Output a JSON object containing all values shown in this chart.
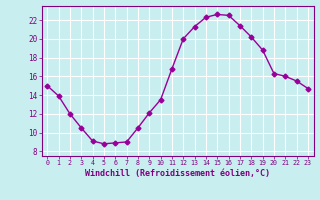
{
  "x": [
    0,
    1,
    2,
    3,
    4,
    5,
    6,
    7,
    8,
    9,
    10,
    11,
    12,
    13,
    14,
    15,
    16,
    17,
    18,
    19,
    20,
    21,
    22,
    23
  ],
  "y": [
    15.0,
    13.9,
    12.0,
    10.5,
    9.1,
    8.8,
    8.9,
    9.0,
    10.5,
    12.1,
    13.5,
    16.8,
    20.0,
    21.3,
    22.3,
    22.6,
    22.5,
    21.4,
    20.2,
    18.8,
    16.3,
    16.0,
    15.5,
    14.7
  ],
  "line_color": "#990099",
  "marker": "D",
  "marker_size": 2.5,
  "bg_color": "#c8eef0",
  "grid_color": "#ffffff",
  "xlabel": "Windchill (Refroidissement éolien,°C)",
  "xlabel_color": "#800080",
  "tick_color": "#800080",
  "ylim": [
    7.5,
    23.5
  ],
  "xlim": [
    -0.5,
    23.5
  ],
  "yticks": [
    8,
    10,
    12,
    14,
    16,
    18,
    20,
    22
  ],
  "xticks": [
    0,
    1,
    2,
    3,
    4,
    5,
    6,
    7,
    8,
    9,
    10,
    11,
    12,
    13,
    14,
    15,
    16,
    17,
    18,
    19,
    20,
    21,
    22,
    23
  ]
}
